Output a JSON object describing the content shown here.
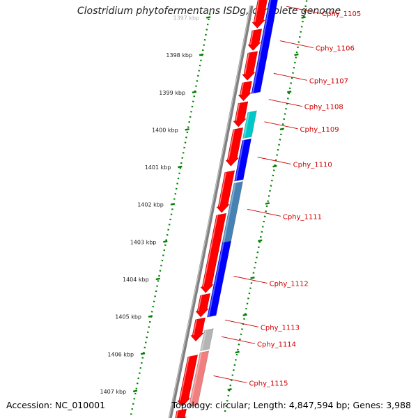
{
  "title": "Clostridium phytofermentans ISDg, complete genome",
  "footer": {
    "accession": "Accession: NC_010001",
    "summary": "Topology: circular; Length: 4,847,594 bp; Genes: 3,988"
  },
  "colors": {
    "forward_feature": "#ff0000",
    "reverse_feature_default": "#0000ff",
    "backbone": "#808080",
    "gc_dots": "#008000",
    "label_line": "#cc0000"
  },
  "map": {
    "kbp_ticks": [
      {
        "label": "1397 kbp",
        "kbp": 1397
      },
      {
        "label": "1398 kbp",
        "kbp": 1398
      },
      {
        "label": "1399 kbp",
        "kbp": 1399
      },
      {
        "label": "1400 kbp",
        "kbp": 1400
      },
      {
        "label": "1401 kbp",
        "kbp": 1401
      },
      {
        "label": "1402 kbp",
        "kbp": 1402
      },
      {
        "label": "1403 kbp",
        "kbp": 1403
      },
      {
        "label": "1404 kbp",
        "kbp": 1404
      },
      {
        "label": "1405 kbp",
        "kbp": 1405
      },
      {
        "label": "1406 kbp",
        "kbp": 1406
      },
      {
        "label": "1407 kbp",
        "kbp": 1407
      }
    ],
    "forward_features": [
      {
        "start": 1396.6,
        "end": 1397.55
      },
      {
        "start": 1397.6,
        "end": 1398.15
      },
      {
        "start": 1398.2,
        "end": 1398.95
      },
      {
        "start": 1399.0,
        "end": 1399.5
      },
      {
        "start": 1399.55,
        "end": 1400.2
      },
      {
        "start": 1400.25,
        "end": 1401.25
      },
      {
        "start": 1401.4,
        "end": 1402.5
      },
      {
        "start": 1402.55,
        "end": 1404.65
      },
      {
        "start": 1404.7,
        "end": 1405.3
      },
      {
        "start": 1405.35,
        "end": 1405.95
      },
      {
        "start": 1406.35,
        "end": 1407.7
      },
      {
        "start": 1407.8,
        "end": 1408.2
      }
    ],
    "genes": [
      {
        "label": "Cphy_1105",
        "start": 1396.6,
        "end": 1397.6,
        "color": "#0000ff"
      },
      {
        "label": "Cphy_1106",
        "start": 1397.6,
        "end": 1398.45,
        "color": "#0000ff"
      },
      {
        "label": "Cphy_1107",
        "start": 1398.45,
        "end": 1399.35,
        "color": "#0000ff"
      },
      {
        "label": "Cphy_1108",
        "start": 1399.35,
        "end": 1399.85,
        "color": "#ffffff"
      },
      {
        "label": "Cphy_1109",
        "start": 1399.85,
        "end": 1400.55,
        "color": "#00c8c8"
      },
      {
        "label": "Cphy_1110",
        "start": 1400.6,
        "end": 1401.7,
        "color": "#0000ff"
      },
      {
        "label": "Cphy_1111",
        "start": 1401.75,
        "end": 1403.35,
        "color": "#4682b4"
      },
      {
        "label": "Cphy_1112",
        "start": 1403.35,
        "end": 1405.35,
        "color": "#0000ff"
      },
      {
        "label": "Cphy_1113",
        "start": 1405.35,
        "end": 1405.7,
        "color": "#ffffff"
      },
      {
        "label": "Cphy_1114",
        "start": 1405.7,
        "end": 1406.25,
        "color": "#b4b4b4"
      },
      {
        "label": "Cphy_1115",
        "start": 1406.3,
        "end": 1407.75,
        "color": "#f08080"
      }
    ]
  }
}
